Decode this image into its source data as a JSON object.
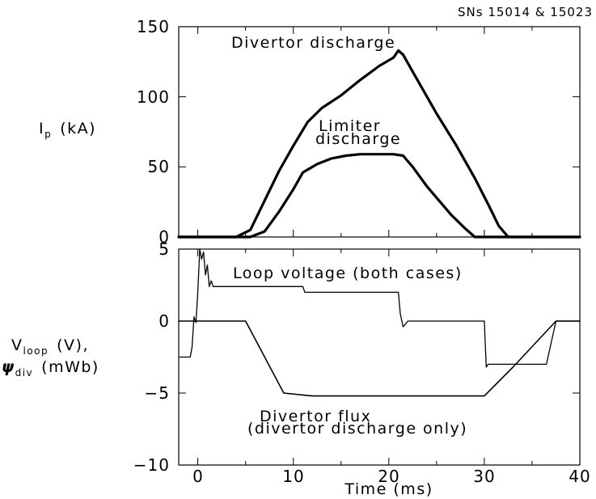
{
  "header": {
    "shot_numbers": "SNs 15014 & 15023"
  },
  "chart_data": [
    {
      "type": "line",
      "ylabel": {
        "main": "I",
        "sub": "p",
        "unit": "(kA)"
      },
      "xlim": [
        -2,
        40
      ],
      "ylim": [
        0,
        150
      ],
      "yticks": [
        "0",
        "50",
        "100",
        "150"
      ],
      "grid": false,
      "annotations": [
        {
          "text": "Divertor discharge",
          "x": 18,
          "y": 142
        },
        {
          "text": "Limiter",
          "x": 22,
          "y": 79
        },
        {
          "text": "discharge",
          "x": 21.5,
          "y": 70
        }
      ],
      "series": [
        {
          "stroke_color": "#000000",
          "x": [
            -2,
            4,
            5.5,
            7,
            8.5,
            10,
            11.5,
            13,
            15,
            17,
            19,
            20.5,
            21,
            21.5,
            23,
            25,
            27,
            29,
            30.5,
            31.5,
            32.5,
            40
          ],
          "y": [
            0,
            0,
            5,
            26,
            47,
            65,
            82,
            92,
            101,
            112,
            122,
            128,
            133,
            130,
            112,
            88,
            66,
            42,
            22,
            8,
            0,
            0
          ]
        },
        {
          "stroke_color": "#000000",
          "x": [
            -2,
            5.5,
            7,
            8.5,
            10,
            11,
            12.5,
            14,
            15.5,
            17,
            19,
            20.5,
            21.5,
            22.5,
            24,
            25.5,
            26.5,
            28,
            29,
            40
          ],
          "y": [
            0,
            0,
            4,
            18,
            34,
            46,
            52,
            56,
            58,
            59,
            59,
            59,
            58,
            50,
            36,
            24,
            16,
            6,
            0,
            0
          ]
        }
      ]
    },
    {
      "type": "line",
      "ylabel": {
        "line1_main": "V",
        "line1_sub": "loop",
        "line1_unit": "(V),",
        "line2_main": "ψ",
        "line2_sub": "div",
        "line2_unit": "(mWb)"
      },
      "xlabel": "Time (ms)",
      "xlim": [
        -2,
        40
      ],
      "ylim": [
        -10,
        5
      ],
      "xticks": [
        "0",
        "10",
        "20",
        "30",
        "40"
      ],
      "yticks": [
        "−10",
        "−5",
        "0",
        "5"
      ],
      "grid": false,
      "annotations": [
        {
          "text": "Loop voltage (both cases)",
          "x": 19.5,
          "y": 3.5
        },
        {
          "text": "Divertor flux",
          "x": 19,
          "y": -7.2
        },
        {
          "text": "(divertor discharge only)",
          "x": 23,
          "y": -8.1
        }
      ],
      "series": [
        {
          "stroke_color": "#000000",
          "x": [
            -2,
            -0.8,
            -0.6,
            -0.4,
            -0.2,
            0,
            0.2,
            0.4,
            0.6,
            0.8,
            1.0,
            1.2,
            1.4,
            1.6,
            11,
            11.2,
            21,
            21.2,
            21.5,
            22,
            30,
            30.2,
            30.4,
            35,
            36.5,
            37.5,
            40
          ],
          "y": [
            -2.5,
            -2.5,
            -1.8,
            0.3,
            -0.1,
            2.0,
            5.0,
            4.3,
            4.8,
            3.2,
            3.9,
            2.4,
            2.8,
            2.4,
            2.4,
            2.0,
            2.0,
            0.5,
            -0.4,
            0,
            0,
            -3.2,
            -3.0,
            -3.0,
            -3.0,
            0,
            0
          ]
        },
        {
          "stroke_color": "#000000",
          "x": [
            -2,
            5,
            9,
            12,
            20,
            30,
            33,
            37.5,
            40
          ],
          "y": [
            0,
            0,
            -5.0,
            -5.2,
            -5.2,
            -5.2,
            -3.2,
            0,
            0
          ]
        }
      ]
    }
  ]
}
